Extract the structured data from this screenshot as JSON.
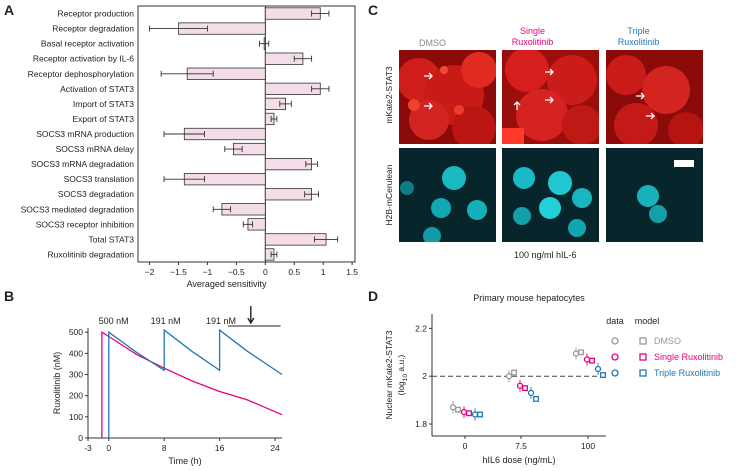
{
  "panels": {
    "a": "A",
    "b": "B",
    "c": "C",
    "d": "D"
  },
  "colors": {
    "bar_fill": "#f3dde8",
    "magenta": "#e6007e",
    "blue": "#1f77b4",
    "grey": "#999999",
    "red_channel": "#e3231f",
    "cyan_channel": "#00c8d0"
  },
  "chart_data": [
    {
      "type": "bar",
      "orientation": "horizontal",
      "categories": [
        "Receptor production",
        "Receptor degradation",
        "Basal receptor activation",
        "Receptor activation by IL-6",
        "Receptor dephosphorylation",
        "Activation of STAT3",
        "Import of STAT3",
        "Export of STAT3",
        "SOCS3 mRNA production",
        "SOCS3 mRNA delay",
        "SOCS3 mRNA degradation",
        "SOCS3 translation",
        "SOCS3 degradation",
        "SOCS3 mediated degradation",
        "SOCS3 receptor inhibition",
        "Total STAT3",
        "Ruxolitinib degradation"
      ],
      "values": [
        0.95,
        -1.5,
        -0.02,
        0.65,
        -1.35,
        0.95,
        0.35,
        0.15,
        -1.4,
        -0.55,
        0.8,
        -1.4,
        0.8,
        -0.75,
        -0.3,
        1.05,
        0.15
      ],
      "errors": [
        0.15,
        0.5,
        0.08,
        0.15,
        0.45,
        0.15,
        0.1,
        0.05,
        0.35,
        0.15,
        0.1,
        0.35,
        0.12,
        0.15,
        0.08,
        0.2,
        0.05
      ],
      "xlabel": "Averaged sensitivity",
      "xlim": [
        -2.2,
        1.55
      ],
      "xticks": [
        -2,
        -1.5,
        -1,
        -0.5,
        0,
        0.5,
        1,
        1.5
      ],
      "xtick_labels": [
        "−2",
        "−1.5",
        "−1",
        "−0.5",
        "0",
        "0.5",
        "1",
        "1.5"
      ]
    },
    {
      "type": "line",
      "xlabel": "Time (h)",
      "ylabel": "Ruxolitinib (nM)",
      "xlim": [
        -3,
        25
      ],
      "ylim": [
        0,
        520
      ],
      "xticks": [
        -3,
        0,
        8,
        16,
        24
      ],
      "yticks": [
        0,
        100,
        200,
        300,
        400,
        500
      ],
      "series": [
        {
          "color": "magenta",
          "points": [
            [
              -1,
              0
            ],
            [
              -1,
              500
            ],
            [
              0,
              480
            ],
            [
              4,
              395
            ],
            [
              8,
              330
            ],
            [
              12,
              270
            ],
            [
              16,
              220
            ],
            [
              20,
              180
            ],
            [
              25,
              110
            ]
          ]
        },
        {
          "color": "blue",
          "points": [
            [
              0,
              0
            ],
            [
              0,
              500
            ],
            [
              4,
              405
            ],
            [
              8,
              320
            ],
            [
              8,
              510
            ],
            [
              12,
              410
            ],
            [
              16,
              320
            ],
            [
              16,
              510
            ],
            [
              20,
              410
            ],
            [
              25,
              300
            ]
          ]
        }
      ],
      "annotations": [
        "500 nM",
        "191 nM",
        "191 nM"
      ]
    },
    {
      "type": "scatter",
      "title": "Primary mouse hepatocytes",
      "ylabel_line1": "Nuclear mKate2-STAT3",
      "ylabel_line2a": "(log",
      "ylabel_sub": "10",
      "ylabel_line2b": " a.u.)",
      "xlabel": "hIL6 dose (ng/mL)",
      "xtick_labels": [
        "0",
        "7.5",
        "100"
      ],
      "yticks": [
        1.8,
        2,
        2.2
      ],
      "ylim": [
        1.75,
        2.26
      ],
      "reference_line": 2,
      "legend_headers": [
        "data",
        "model"
      ],
      "legend_entries": [
        "DMSO",
        "Single Ruxolitinib",
        "Triple Ruxolitinib"
      ],
      "groups": [
        {
          "dose": "0",
          "data": [
            1.87,
            1.85,
            1.84
          ],
          "model": [
            1.86,
            1.845,
            1.84
          ]
        },
        {
          "dose": "7.5",
          "data": [
            2.0,
            1.96,
            1.93
          ],
          "model": [
            2.015,
            1.95,
            1.905
          ]
        },
        {
          "dose": "100",
          "data": [
            2.095,
            2.07,
            2.03
          ],
          "model": [
            2.1,
            2.065,
            2.005
          ]
        }
      ]
    }
  ],
  "microscopy": {
    "columns": [
      "DMSO",
      "Single\nRuxolitinib",
      "Triple\nRuxolitinib"
    ],
    "row_labels": [
      "mKate2-STAT3",
      "H2B-mCerulean"
    ],
    "caption": "100 ng/ml hIL-6"
  }
}
